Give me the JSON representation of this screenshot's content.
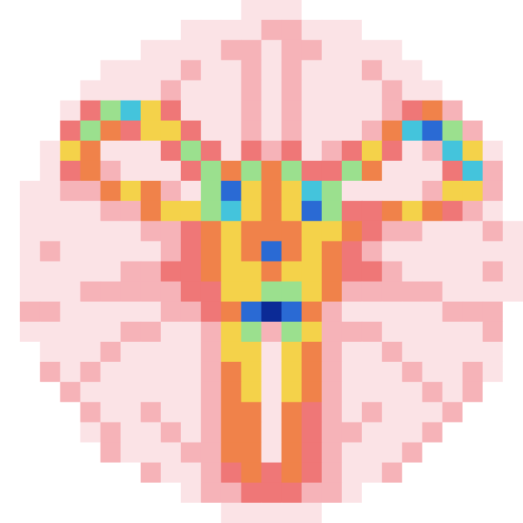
{
  "chart_data": {
    "type": "heatmap",
    "tick_labels": false,
    "zlim": [
      0,
      9
    ],
    "z": [
      [
        0,
        0,
        0,
        0,
        0,
        0,
        0,
        0,
        0,
        0,
        0,
        0,
        1,
        1,
        1,
        0,
        0,
        0,
        0,
        0,
        0,
        0,
        0,
        0,
        0,
        0
      ],
      [
        0,
        0,
        0,
        0,
        0,
        0,
        0,
        0,
        0,
        1,
        1,
        1,
        1,
        2,
        2,
        1,
        1,
        1,
        0,
        0,
        0,
        0,
        0,
        0,
        0,
        0
      ],
      [
        0,
        0,
        0,
        0,
        0,
        0,
        0,
        1,
        1,
        1,
        1,
        2,
        2,
        1,
        2,
        2,
        1,
        1,
        1,
        1,
        0,
        0,
        0,
        0,
        0,
        0
      ],
      [
        0,
        0,
        0,
        0,
        0,
        1,
        1,
        1,
        1,
        2,
        1,
        1,
        2,
        1,
        2,
        1,
        1,
        1,
        2,
        1,
        1,
        0,
        0,
        0,
        0,
        0
      ],
      [
        0,
        0,
        0,
        0,
        1,
        1,
        1,
        1,
        2,
        1,
        1,
        1,
        2,
        1,
        2,
        1,
        1,
        1,
        1,
        2,
        1,
        1,
        0,
        0,
        0,
        0
      ],
      [
        0,
        0,
        0,
        1,
        3,
        6,
        7,
        5,
        3,
        1,
        1,
        1,
        2,
        1,
        2,
        1,
        1,
        1,
        1,
        2,
        3,
        4,
        2,
        0,
        0,
        0
      ],
      [
        0,
        0,
        0,
        3,
        6,
        4,
        3,
        5,
        5,
        3,
        1,
        1,
        2,
        1,
        2,
        1,
        1,
        1,
        2,
        4,
        7,
        8,
        6,
        2,
        0,
        0
      ],
      [
        0,
        0,
        1,
        5,
        4,
        1,
        1,
        1,
        3,
        6,
        3,
        1,
        3,
        2,
        3,
        1,
        2,
        3,
        5,
        3,
        1,
        2,
        7,
        5,
        1,
        0
      ],
      [
        0,
        0,
        1,
        3,
        4,
        2,
        1,
        1,
        1,
        3,
        6,
        4,
        6,
        4,
        6,
        3,
        3,
        6,
        4,
        1,
        1,
        1,
        3,
        7,
        2,
        0
      ],
      [
        0,
        1,
        1,
        2,
        2,
        4,
        5,
        4,
        2,
        1,
        6,
        8,
        5,
        4,
        5,
        7,
        6,
        1,
        1,
        1,
        1,
        2,
        5,
        5,
        2,
        0
      ],
      [
        0,
        1,
        1,
        1,
        1,
        2,
        2,
        4,
        5,
        5,
        6,
        7,
        5,
        4,
        5,
        8,
        6,
        3,
        3,
        4,
        5,
        4,
        3,
        2,
        1,
        0
      ],
      [
        0,
        1,
        1,
        1,
        1,
        1,
        1,
        2,
        2,
        3,
        4,
        5,
        4,
        4,
        4,
        5,
        5,
        4,
        3,
        2,
        2,
        1,
        1,
        1,
        2,
        1
      ],
      [
        0,
        1,
        2,
        1,
        1,
        1,
        1,
        1,
        2,
        3,
        4,
        5,
        4,
        8,
        4,
        5,
        4,
        3,
        2,
        1,
        1,
        1,
        1,
        1,
        1,
        1
      ],
      [
        0,
        1,
        1,
        1,
        1,
        1,
        2,
        2,
        3,
        3,
        4,
        5,
        5,
        4,
        5,
        5,
        4,
        3,
        3,
        2,
        1,
        1,
        1,
        1,
        2,
        1
      ],
      [
        0,
        1,
        1,
        1,
        2,
        2,
        2,
        2,
        2,
        3,
        3,
        5,
        5,
        6,
        6,
        5,
        4,
        2,
        2,
        2,
        2,
        2,
        1,
        1,
        1,
        1
      ],
      [
        0,
        2,
        2,
        1,
        1,
        1,
        1,
        1,
        2,
        2,
        3,
        4,
        8,
        9,
        8,
        4,
        2,
        1,
        1,
        1,
        1,
        1,
        2,
        2,
        2,
        0
      ],
      [
        0,
        1,
        1,
        1,
        1,
        1,
        2,
        2,
        1,
        1,
        2,
        5,
        6,
        2,
        6,
        5,
        2,
        2,
        2,
        1,
        1,
        1,
        1,
        1,
        2,
        0
      ],
      [
        0,
        0,
        1,
        1,
        1,
        2,
        1,
        1,
        1,
        1,
        2,
        5,
        5,
        1,
        5,
        4,
        2,
        1,
        1,
        2,
        1,
        1,
        1,
        1,
        1,
        0
      ],
      [
        0,
        0,
        2,
        1,
        2,
        1,
        1,
        1,
        1,
        1,
        2,
        4,
        5,
        1,
        5,
        4,
        2,
        1,
        1,
        1,
        2,
        1,
        1,
        2,
        1,
        0
      ],
      [
        0,
        0,
        0,
        2,
        1,
        1,
        1,
        1,
        1,
        1,
        2,
        4,
        5,
        1,
        5,
        4,
        2,
        1,
        1,
        1,
        1,
        2,
        1,
        2,
        0,
        0
      ],
      [
        0,
        0,
        0,
        0,
        2,
        1,
        1,
        2,
        1,
        1,
        2,
        4,
        4,
        1,
        4,
        3,
        2,
        1,
        2,
        1,
        1,
        1,
        2,
        0,
        0,
        0
      ],
      [
        0,
        0,
        0,
        0,
        1,
        2,
        1,
        1,
        2,
        1,
        2,
        4,
        4,
        1,
        4,
        3,
        2,
        2,
        1,
        1,
        1,
        2,
        0,
        0,
        0,
        0
      ],
      [
        0,
        0,
        0,
        0,
        0,
        2,
        1,
        1,
        1,
        2,
        2,
        4,
        4,
        1,
        4,
        3,
        2,
        1,
        1,
        1,
        2,
        0,
        0,
        0,
        0,
        0
      ],
      [
        0,
        0,
        0,
        0,
        0,
        0,
        0,
        2,
        1,
        1,
        2,
        3,
        4,
        3,
        4,
        3,
        2,
        1,
        1,
        2,
        0,
        0,
        0,
        0,
        0,
        0
      ],
      [
        0,
        0,
        0,
        0,
        0,
        0,
        0,
        0,
        0,
        1,
        2,
        2,
        3,
        3,
        3,
        2,
        2,
        1,
        0,
        0,
        0,
        0,
        0,
        0,
        0,
        0
      ],
      [
        0,
        0,
        0,
        0,
        0,
        0,
        0,
        0,
        0,
        0,
        0,
        1,
        1,
        1,
        1,
        1,
        0,
        0,
        0,
        0,
        0,
        0,
        0,
        0,
        0,
        0
      ]
    ]
  }
}
